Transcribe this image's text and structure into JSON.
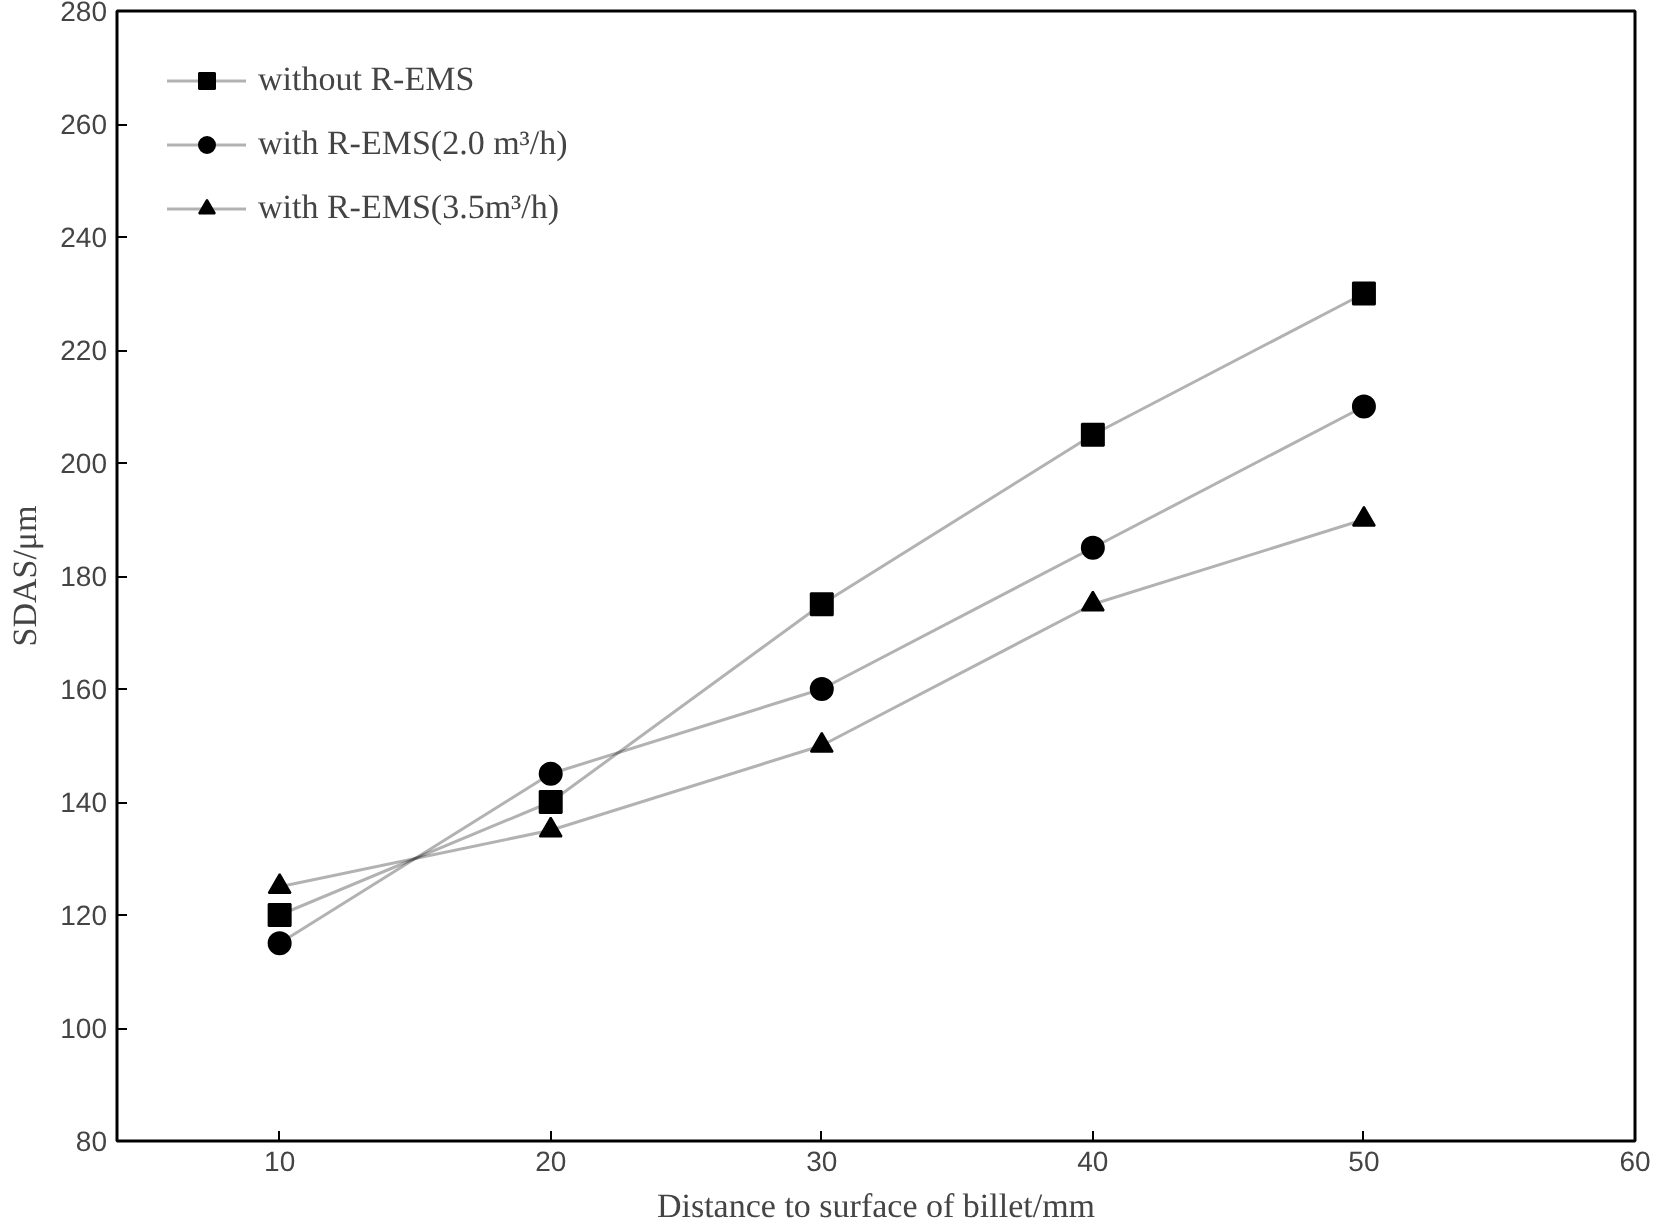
{
  "chart_data": {
    "type": "line",
    "xlabel": "Distance to surface of billet/mm",
    "ylabel": "SDAS/μm",
    "x": [
      10,
      20,
      30,
      40,
      50
    ],
    "xlim": [
      4,
      60
    ],
    "xticks": [
      10,
      20,
      30,
      40,
      50,
      60
    ],
    "ylim": [
      80,
      280
    ],
    "yticks": [
      80,
      100,
      120,
      140,
      160,
      180,
      200,
      220,
      240,
      260,
      280
    ],
    "grid": false,
    "legend": "top left",
    "line_style": "solid",
    "series": [
      {
        "name": "without R-EMS",
        "color": "#000000",
        "marker": "square",
        "values": [
          120,
          140,
          175,
          205,
          230
        ]
      },
      {
        "name": "with R-EMS(2.0 m³/h)",
        "color": "#000000",
        "marker": "circle",
        "values": [
          115,
          145,
          160,
          185,
          210
        ]
      },
      {
        "name": "with R-EMS(3.5m³/h)",
        "color": "#000000",
        "marker": "triangle",
        "values": [
          125,
          135,
          150,
          175,
          190
        ]
      }
    ]
  }
}
